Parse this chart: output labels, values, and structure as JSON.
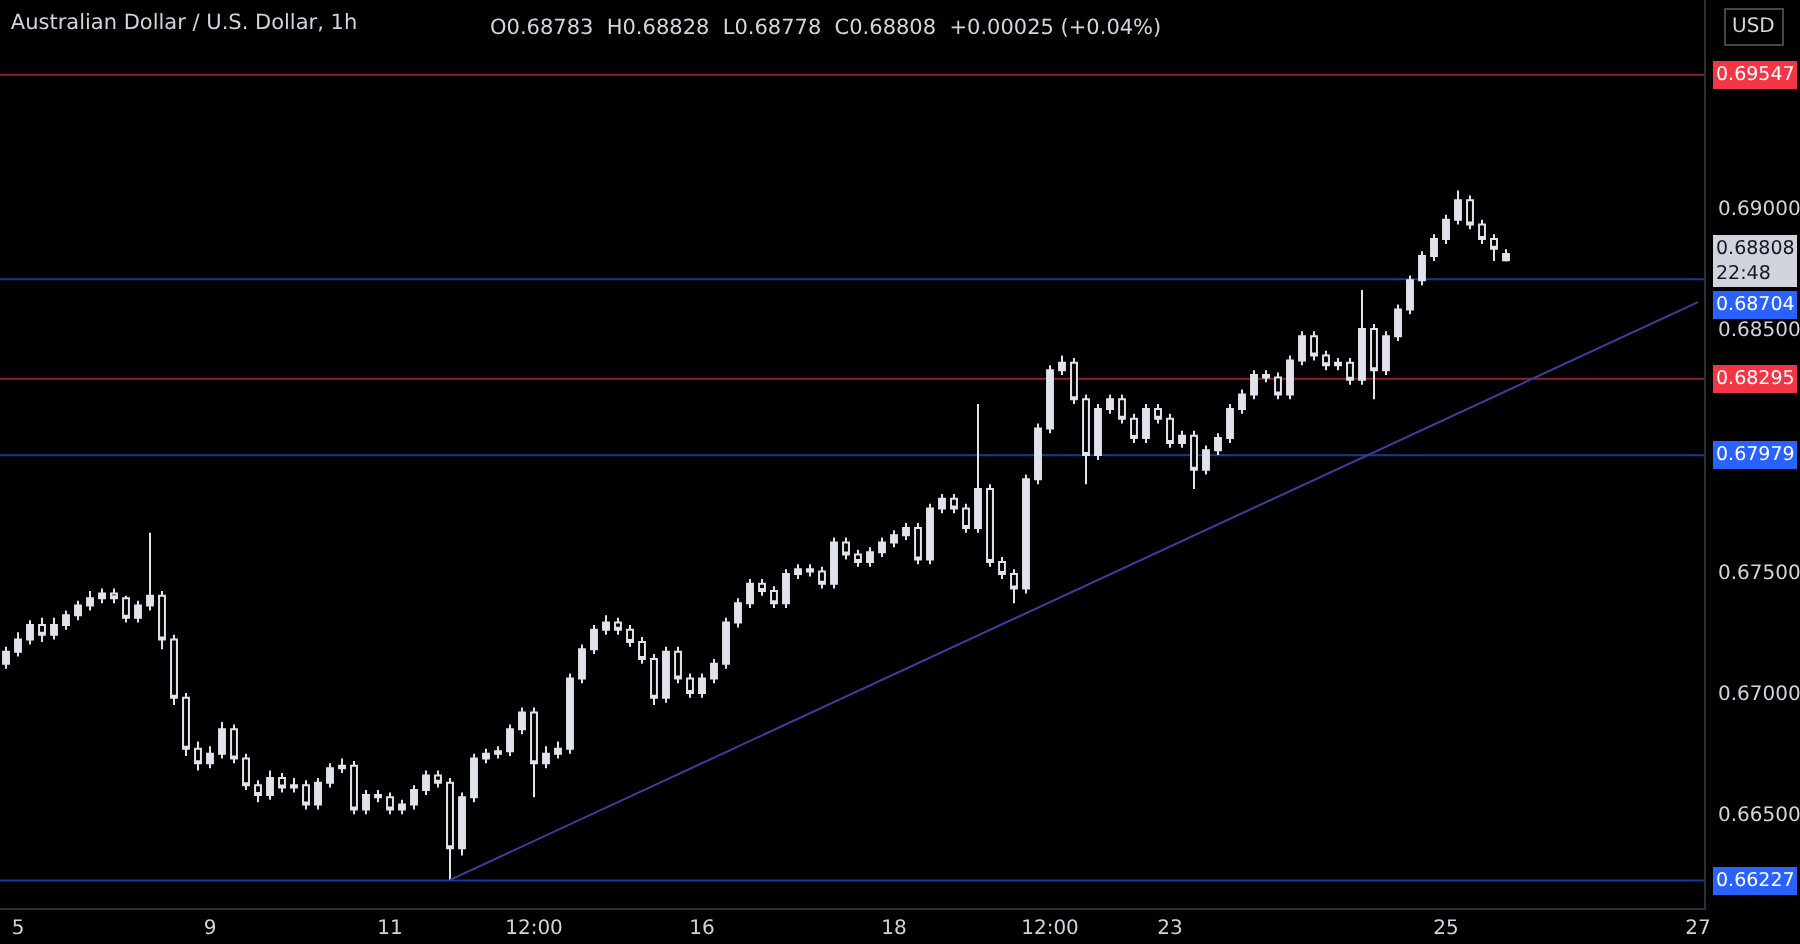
{
  "chart_data": {
    "type": "candlestick",
    "title": "Australian Dollar / U.S. Dollar, 1h",
    "subtitle": "O0.68783  H0.68828  L0.68778  C0.68808  +0.00025 (+0.04%)",
    "annotations": [
      "USD",
      "0.68808",
      "22:48"
    ],
    "color": "#e0e3eb",
    "categories": [
      null,
      "5",
      null,
      null,
      null,
      null,
      null,
      null,
      null,
      null,
      null,
      null,
      null,
      null,
      null,
      null,
      null,
      "9",
      null,
      null,
      null,
      null,
      null,
      null,
      null,
      null,
      null,
      null,
      null,
      null,
      null,
      null,
      "11",
      null,
      null,
      null,
      null,
      null,
      null,
      null,
      null,
      null,
      null,
      null,
      "12:00",
      null,
      null,
      null,
      null,
      null,
      null,
      null,
      null,
      null,
      null,
      null,
      null,
      null,
      "16",
      null,
      null,
      null,
      null,
      null,
      null,
      null,
      null,
      null,
      null,
      null,
      null,
      null,
      null,
      null,
      "18",
      null,
      null,
      null,
      null,
      null,
      null,
      null,
      null,
      null,
      null,
      null,
      null,
      "12:00",
      null,
      null,
      null,
      null,
      null,
      null,
      null,
      null,
      null,
      "23",
      null,
      null,
      null,
      null,
      null,
      null,
      null,
      null,
      null,
      null,
      null,
      null,
      null,
      null,
      null,
      null,
      null,
      null,
      null,
      null,
      null,
      null,
      "25",
      null,
      null,
      null,
      null,
      null,
      null,
      null,
      null,
      null,
      null,
      null,
      null,
      null,
      null,
      null,
      null,
      null,
      null,
      null,
      null,
      "27"
    ],
    "ohlc": [
      [
        0.6712,
        0.6719,
        0.671,
        0.6717
      ],
      [
        0.6717,
        0.6725,
        0.6715,
        0.6722
      ],
      [
        0.6722,
        0.673,
        0.672,
        0.6728
      ],
      [
        0.6728,
        0.6731,
        0.6721,
        0.6724
      ],
      [
        0.6724,
        0.6731,
        0.6722,
        0.6728
      ],
      [
        0.6728,
        0.6734,
        0.6726,
        0.6732
      ],
      [
        0.6732,
        0.6738,
        0.673,
        0.6736
      ],
      [
        0.6736,
        0.6742,
        0.6734,
        0.6739
      ],
      [
        0.6739,
        0.6743,
        0.6737,
        0.6741
      ],
      [
        0.6741,
        0.6743,
        0.6737,
        0.6739
      ],
      [
        0.6739,
        0.674,
        0.6729,
        0.6731
      ],
      [
        0.6731,
        0.6738,
        0.6729,
        0.6736
      ],
      [
        0.6736,
        0.6766,
        0.6734,
        0.674
      ],
      [
        0.674,
        0.6742,
        0.6718,
        0.6722
      ],
      [
        0.6722,
        0.6724,
        0.6695,
        0.6698
      ],
      [
        0.6698,
        0.67,
        0.6674,
        0.6677
      ],
      [
        0.6677,
        0.668,
        0.6668,
        0.6671
      ],
      [
        0.6671,
        0.6678,
        0.6669,
        0.6675
      ],
      [
        0.6675,
        0.6688,
        0.6673,
        0.6685
      ],
      [
        0.6685,
        0.6687,
        0.6671,
        0.6673
      ],
      [
        0.6673,
        0.6675,
        0.666,
        0.6662
      ],
      [
        0.6662,
        0.6664,
        0.6655,
        0.6658
      ],
      [
        0.6658,
        0.6668,
        0.6656,
        0.6665
      ],
      [
        0.6665,
        0.6667,
        0.6659,
        0.6661
      ],
      [
        0.6661,
        0.6665,
        0.6659,
        0.6662
      ],
      [
        0.6662,
        0.6664,
        0.6652,
        0.6654
      ],
      [
        0.6654,
        0.6665,
        0.6652,
        0.6663
      ],
      [
        0.6663,
        0.6671,
        0.6661,
        0.6669
      ],
      [
        0.6669,
        0.6673,
        0.6667,
        0.667
      ],
      [
        0.667,
        0.6672,
        0.665,
        0.6652
      ],
      [
        0.6652,
        0.666,
        0.665,
        0.6658
      ],
      [
        0.6658,
        0.666,
        0.6655,
        0.6657
      ],
      [
        0.6657,
        0.6659,
        0.665,
        0.6652
      ],
      [
        0.6652,
        0.6656,
        0.665,
        0.6654
      ],
      [
        0.6654,
        0.6662,
        0.6652,
        0.666
      ],
      [
        0.666,
        0.6668,
        0.6658,
        0.6666
      ],
      [
        0.6666,
        0.6668,
        0.6661,
        0.6663
      ],
      [
        0.6663,
        0.6665,
        0.6623,
        0.6636
      ],
      [
        0.6636,
        0.6659,
        0.6633,
        0.6657
      ],
      [
        0.6657,
        0.6675,
        0.6655,
        0.6673
      ],
      [
        0.6673,
        0.6677,
        0.6671,
        0.6675
      ],
      [
        0.6675,
        0.6678,
        0.6673,
        0.6676
      ],
      [
        0.6676,
        0.6687,
        0.6674,
        0.6685
      ],
      [
        0.6685,
        0.6694,
        0.6683,
        0.6692
      ],
      [
        0.6692,
        0.6694,
        0.6657,
        0.6671
      ],
      [
        0.6671,
        0.6678,
        0.6669,
        0.6675
      ],
      [
        0.6675,
        0.668,
        0.6673,
        0.6677
      ],
      [
        0.6677,
        0.6708,
        0.6675,
        0.6706
      ],
      [
        0.6706,
        0.672,
        0.6704,
        0.6718
      ],
      [
        0.6718,
        0.6728,
        0.6716,
        0.6726
      ],
      [
        0.6726,
        0.6732,
        0.6724,
        0.6729
      ],
      [
        0.6729,
        0.6731,
        0.6724,
        0.6726
      ],
      [
        0.6726,
        0.6728,
        0.6719,
        0.6721
      ],
      [
        0.6721,
        0.6723,
        0.6712,
        0.6714
      ],
      [
        0.6714,
        0.6716,
        0.6695,
        0.6698
      ],
      [
        0.6698,
        0.6719,
        0.6696,
        0.6717
      ],
      [
        0.6717,
        0.6719,
        0.6704,
        0.6706
      ],
      [
        0.6706,
        0.6708,
        0.6698,
        0.67
      ],
      [
        0.67,
        0.6708,
        0.6698,
        0.6706
      ],
      [
        0.6706,
        0.6714,
        0.6704,
        0.6712
      ],
      [
        0.6712,
        0.6731,
        0.671,
        0.6729
      ],
      [
        0.6729,
        0.6739,
        0.6727,
        0.6737
      ],
      [
        0.6737,
        0.6747,
        0.6735,
        0.6745
      ],
      [
        0.6745,
        0.6747,
        0.674,
        0.6742
      ],
      [
        0.6742,
        0.6744,
        0.6735,
        0.6737
      ],
      [
        0.6737,
        0.6751,
        0.6735,
        0.6749
      ],
      [
        0.6749,
        0.6753,
        0.6747,
        0.6751
      ],
      [
        0.6751,
        0.6753,
        0.6748,
        0.675
      ],
      [
        0.675,
        0.6752,
        0.6743,
        0.6745
      ],
      [
        0.6745,
        0.6764,
        0.6743,
        0.6762
      ],
      [
        0.6762,
        0.6764,
        0.6755,
        0.6757
      ],
      [
        0.6757,
        0.6759,
        0.6752,
        0.6754
      ],
      [
        0.6754,
        0.676,
        0.6752,
        0.6758
      ],
      [
        0.6758,
        0.6764,
        0.6756,
        0.6762
      ],
      [
        0.6762,
        0.6767,
        0.676,
        0.6765
      ],
      [
        0.6765,
        0.677,
        0.6763,
        0.6768
      ],
      [
        0.6768,
        0.677,
        0.6753,
        0.6755
      ],
      [
        0.6755,
        0.6778,
        0.6753,
        0.6776
      ],
      [
        0.6776,
        0.6782,
        0.6774,
        0.678
      ],
      [
        0.678,
        0.6782,
        0.6774,
        0.6776
      ],
      [
        0.6776,
        0.6778,
        0.6766,
        0.6768
      ],
      [
        0.6768,
        0.6819,
        0.6766,
        0.6784
      ],
      [
        0.6784,
        0.6786,
        0.6752,
        0.6754
      ],
      [
        0.6754,
        0.6756,
        0.6747,
        0.6749
      ],
      [
        0.6749,
        0.6751,
        0.6737,
        0.6743
      ],
      [
        0.6743,
        0.679,
        0.6741,
        0.6788
      ],
      [
        0.6788,
        0.6811,
        0.6786,
        0.6809
      ],
      [
        0.6809,
        0.6835,
        0.6807,
        0.6833
      ],
      [
        0.6833,
        0.6839,
        0.6831,
        0.6836
      ],
      [
        0.6836,
        0.6838,
        0.6819,
        0.6821
      ],
      [
        0.6821,
        0.6823,
        0.6786,
        0.6798
      ],
      [
        0.6798,
        0.6819,
        0.6796,
        0.6817
      ],
      [
        0.6817,
        0.6823,
        0.6815,
        0.6821
      ],
      [
        0.6821,
        0.6823,
        0.6811,
        0.6813
      ],
      [
        0.6813,
        0.6815,
        0.6803,
        0.6805
      ],
      [
        0.6805,
        0.6819,
        0.6803,
        0.6817
      ],
      [
        0.6817,
        0.6819,
        0.6811,
        0.6813
      ],
      [
        0.6813,
        0.6815,
        0.6801,
        0.6803
      ],
      [
        0.6803,
        0.6808,
        0.6801,
        0.6806
      ],
      [
        0.6806,
        0.6808,
        0.6784,
        0.6792
      ],
      [
        0.6792,
        0.6802,
        0.679,
        0.68
      ],
      [
        0.68,
        0.6807,
        0.6798,
        0.6805
      ],
      [
        0.6805,
        0.6819,
        0.6803,
        0.6817
      ],
      [
        0.6817,
        0.6825,
        0.6815,
        0.6823
      ],
      [
        0.6823,
        0.6833,
        0.6821,
        0.6831
      ],
      [
        0.6831,
        0.6833,
        0.6828,
        0.683
      ],
      [
        0.683,
        0.6832,
        0.6821,
        0.6823
      ],
      [
        0.6823,
        0.6839,
        0.6821,
        0.6837
      ],
      [
        0.6837,
        0.6849,
        0.6835,
        0.6847
      ],
      [
        0.6847,
        0.6849,
        0.6837,
        0.6839
      ],
      [
        0.6839,
        0.6841,
        0.6833,
        0.6835
      ],
      [
        0.6835,
        0.6838,
        0.6833,
        0.6836
      ],
      [
        0.6836,
        0.6838,
        0.6827,
        0.6829
      ],
      [
        0.6829,
        0.6866,
        0.6827,
        0.685
      ],
      [
        0.685,
        0.6852,
        0.6821,
        0.6833
      ],
      [
        0.6833,
        0.6849,
        0.6831,
        0.6847
      ],
      [
        0.6847,
        0.686,
        0.6845,
        0.6858
      ],
      [
        0.6858,
        0.6872,
        0.6856,
        0.687
      ],
      [
        0.687,
        0.6882,
        0.6868,
        0.688
      ],
      [
        0.688,
        0.6889,
        0.6878,
        0.6887
      ],
      [
        0.6887,
        0.6897,
        0.6885,
        0.6895
      ],
      [
        0.6895,
        0.6907,
        0.6893,
        0.6903
      ],
      [
        0.6903,
        0.6905,
        0.6891,
        0.6893
      ],
      [
        0.6893,
        0.6895,
        0.6885,
        0.6887
      ],
      [
        0.6887,
        0.6889,
        0.6878,
        0.6883
      ],
      [
        0.68783,
        0.68828,
        0.68778,
        0.68808
      ],
      null,
      null,
      null,
      null,
      null,
      null,
      null,
      null,
      null,
      null,
      null,
      null,
      null,
      null,
      null,
      null
    ],
    "series": [
      {
        "type": "line",
        "values": [
          null,
          null,
          null,
          null,
          null,
          null,
          null,
          null,
          null,
          null,
          null,
          null,
          null,
          null,
          null,
          null,
          null,
          null,
          null,
          null,
          null,
          null,
          null,
          null,
          null,
          null,
          null,
          null,
          null,
          null,
          null,
          null,
          null,
          null,
          null,
          null,
          null,
          0.6623,
          null,
          null,
          null,
          null,
          null,
          null,
          null,
          null,
          null,
          null,
          null,
          null,
          null,
          null,
          null,
          null,
          null,
          null,
          null,
          null,
          null,
          null,
          null,
          null,
          null,
          null,
          null,
          null,
          null,
          null,
          null,
          null,
          null,
          null,
          null,
          null,
          null,
          null,
          null,
          null,
          null,
          null,
          null,
          null,
          null,
          null,
          null,
          null,
          null,
          null,
          null,
          null,
          null,
          null,
          null,
          null,
          null,
          null,
          null,
          null,
          null,
          null,
          null,
          null,
          null,
          null,
          null,
          null,
          null,
          null,
          null,
          null,
          null,
          null,
          null,
          null,
          null,
          null,
          null,
          null,
          null,
          null,
          null,
          null,
          null,
          null,
          null,
          null,
          null,
          null,
          null,
          null,
          null,
          null,
          null,
          null,
          null,
          null,
          null,
          null,
          null,
          null,
          null,
          0.6861
        ],
        "color": "#3c3f9e"
      }
    ],
    "ref_lines": [
      {
        "axis": "y",
        "value": 0.69547,
        "label": "0.69547",
        "color": "#f23645"
      },
      {
        "axis": "y",
        "value": 0.68704,
        "label": "0.68704",
        "color": "#2962ff"
      },
      {
        "axis": "y",
        "value": 0.68295,
        "label": "0.68295",
        "color": "#f23645"
      },
      {
        "axis": "y",
        "value": 0.67979,
        "label": "0.67979",
        "color": "#2962ff"
      },
      {
        "axis": "y",
        "value": 0.66227,
        "label": "0.66227",
        "color": "#2962ff"
      }
    ],
    "ylim": [
      0.66114,
      0.69855
    ],
    "yticks": [
      {
        "value": 0.665,
        "label": "0.66500"
      },
      {
        "value": 0.67,
        "label": "0.67000"
      },
      {
        "value": 0.675,
        "label": "0.67500"
      },
      {
        "value": 0.685,
        "label": "0.68500"
      },
      {
        "value": 0.69,
        "label": "0.69000"
      }
    ],
    "grid": false
  }
}
